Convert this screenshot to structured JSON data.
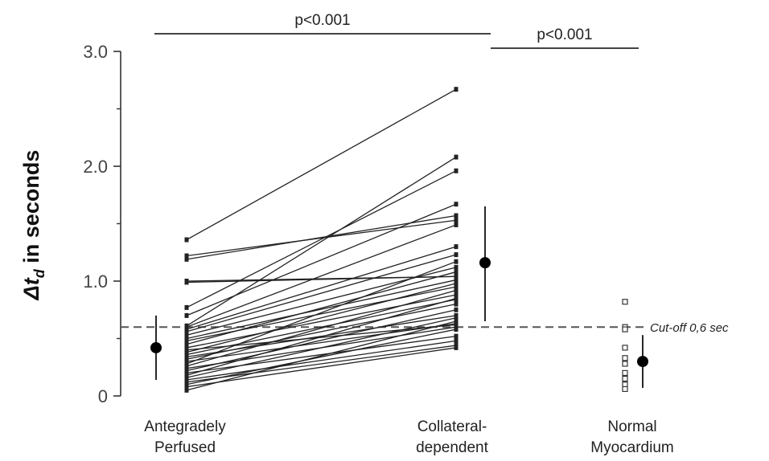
{
  "chart_data": {
    "type": "scatter",
    "ylabel_prefix": "Δt",
    "ylabel_subscript": "d",
    "ylabel_suffix": " in seconds",
    "ylim": [
      0,
      3.0
    ],
    "yticks": [
      {
        "value": 0,
        "label": "0"
      },
      {
        "value": 1.0,
        "label": "1.0"
      },
      {
        "value": 2.0,
        "label": "2.0"
      },
      {
        "value": 3.0,
        "label": "3.0"
      }
    ],
    "categories": [
      {
        "key": "ante",
        "lines": [
          "Antegradely",
          "Perfused"
        ]
      },
      {
        "key": "coll",
        "lines": [
          "Collateral-",
          "dependent"
        ]
      },
      {
        "key": "norm",
        "lines": [
          "Normal",
          "Myocardium"
        ]
      }
    ],
    "paired_lines": [
      [
        1.36,
        2.67
      ],
      [
        1.22,
        1.53
      ],
      [
        1.19,
        1.57
      ],
      [
        1.0,
        1.04
      ],
      [
        0.99,
        1.04
      ],
      [
        0.77,
        1.96
      ],
      [
        0.7,
        1.67
      ],
      [
        0.61,
        2.08
      ],
      [
        0.6,
        1.49
      ],
      [
        0.58,
        1.3
      ],
      [
        0.56,
        1.23
      ],
      [
        0.53,
        1.12
      ],
      [
        0.5,
        1.01
      ],
      [
        0.48,
        0.95
      ],
      [
        0.45,
        1.08
      ],
      [
        0.42,
        0.88
      ],
      [
        0.4,
        0.62
      ],
      [
        0.38,
        0.98
      ],
      [
        0.36,
        0.84
      ],
      [
        0.34,
        0.7
      ],
      [
        0.32,
        0.8
      ],
      [
        0.3,
        0.63
      ],
      [
        0.28,
        1.17
      ],
      [
        0.26,
        0.92
      ],
      [
        0.24,
        0.6
      ],
      [
        0.22,
        0.75
      ],
      [
        0.2,
        0.52
      ],
      [
        0.18,
        0.85
      ],
      [
        0.16,
        0.68
      ],
      [
        0.14,
        0.48
      ],
      [
        0.12,
        0.44
      ],
      [
        0.1,
        0.58
      ],
      [
        0.08,
        0.42
      ],
      [
        0.05,
        0.65
      ]
    ],
    "mean_sd": [
      {
        "category": "ante",
        "mean": 0.42,
        "low": 0.14,
        "high": 0.7
      },
      {
        "category": "coll",
        "mean": 1.16,
        "low": 0.65,
        "high": 1.65
      },
      {
        "category": "norm",
        "mean": 0.3,
        "low": 0.07,
        "high": 0.53
      }
    ],
    "normal_points": [
      0.82,
      0.6,
      0.58,
      0.42,
      0.33,
      0.28,
      0.2,
      0.15,
      0.1,
      0.06
    ],
    "cutoff": {
      "value": 0.6,
      "label": "Cut-off 0,6 sec"
    },
    "significance": [
      {
        "from": "ante",
        "to": "coll",
        "label": "p<0.001"
      },
      {
        "from": "coll",
        "to": "norm",
        "label": "p<0.001"
      }
    ]
  }
}
